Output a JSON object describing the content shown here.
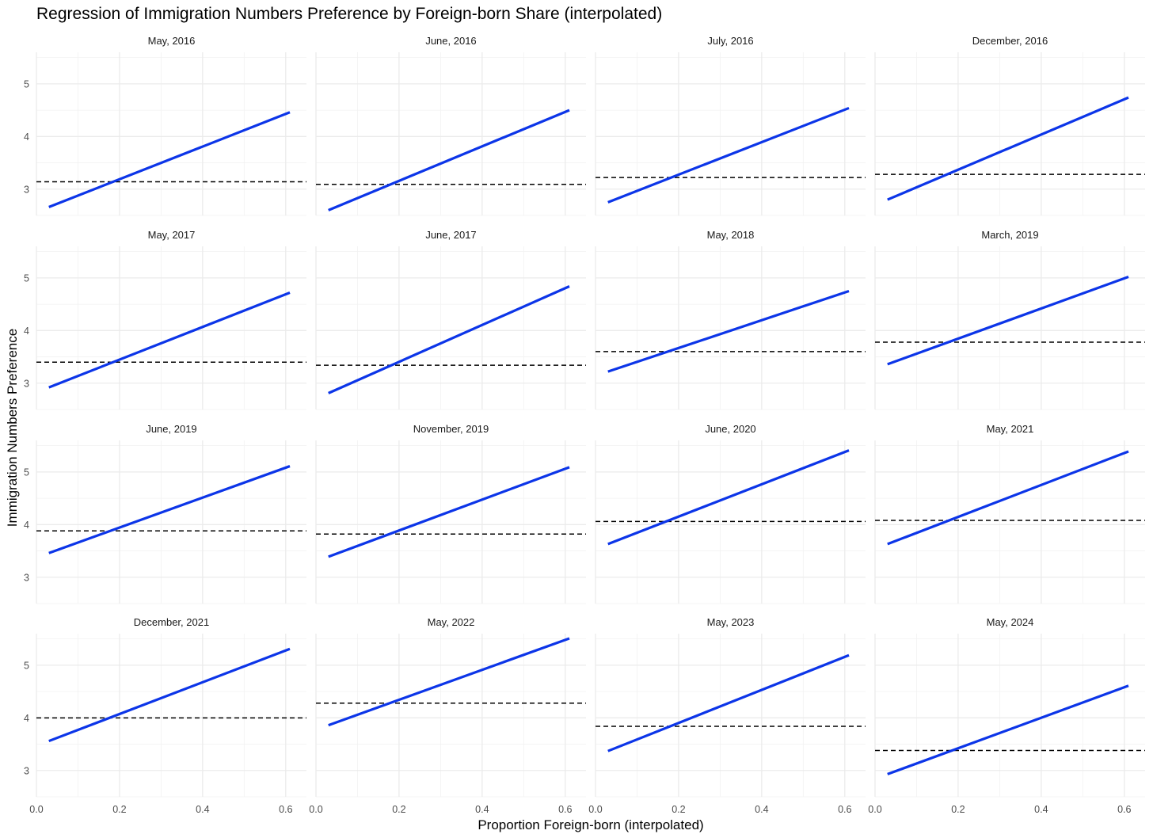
{
  "chart_data": {
    "type": "line",
    "title": "Regression of Immigration Numbers Preference by Foreign-born Share (interpolated)",
    "xlabel": "Proportion Foreign-born (interpolated)",
    "ylabel": "Immigration Numbers Preference",
    "xlim": [
      0,
      0.65
    ],
    "ylim": [
      2.5,
      5.6
    ],
    "x_ticks": [
      0.0,
      0.2,
      0.4,
      0.6
    ],
    "x_tick_labels": [
      "0.0",
      "0.2",
      "0.4",
      "0.6"
    ],
    "y_ticks": [
      3,
      4,
      5
    ],
    "y_tick_labels": [
      "3",
      "4",
      "5"
    ],
    "grid": true,
    "legend": "none",
    "colors": {
      "regression": "#0c35e8",
      "mean": "#000000"
    },
    "panels": [
      {
        "label": "May, 2016",
        "x": [
          0.03,
          0.61
        ],
        "fit": [
          2.66,
          4.46
        ],
        "mean": 3.14
      },
      {
        "label": "June, 2016",
        "x": [
          0.03,
          0.61
        ],
        "fit": [
          2.6,
          4.5
        ],
        "mean": 3.09
      },
      {
        "label": "July, 2016",
        "x": [
          0.03,
          0.61
        ],
        "fit": [
          2.75,
          4.54
        ],
        "mean": 3.22
      },
      {
        "label": "December, 2016",
        "x": [
          0.03,
          0.61
        ],
        "fit": [
          2.8,
          4.74
        ],
        "mean": 3.28
      },
      {
        "label": "May, 2017",
        "x": [
          0.03,
          0.61
        ],
        "fit": [
          2.92,
          4.72
        ],
        "mean": 3.4
      },
      {
        "label": "June, 2017",
        "x": [
          0.03,
          0.61
        ],
        "fit": [
          2.81,
          4.84
        ],
        "mean": 3.34
      },
      {
        "label": "May, 2018",
        "x": [
          0.03,
          0.61
        ],
        "fit": [
          3.22,
          4.75
        ],
        "mean": 3.6
      },
      {
        "label": "March, 2019",
        "x": [
          0.03,
          0.61
        ],
        "fit": [
          3.36,
          5.02
        ],
        "mean": 3.78
      },
      {
        "label": "June, 2019",
        "x": [
          0.03,
          0.61
        ],
        "fit": [
          3.46,
          5.11
        ],
        "mean": 3.88
      },
      {
        "label": "November, 2019",
        "x": [
          0.03,
          0.61
        ],
        "fit": [
          3.39,
          5.09
        ],
        "mean": 3.82
      },
      {
        "label": "June, 2020",
        "x": [
          0.03,
          0.61
        ],
        "fit": [
          3.63,
          5.41
        ],
        "mean": 4.06
      },
      {
        "label": "May, 2021",
        "x": [
          0.03,
          0.61
        ],
        "fit": [
          3.63,
          5.39
        ],
        "mean": 4.08
      },
      {
        "label": "December, 2021",
        "x": [
          0.03,
          0.61
        ],
        "fit": [
          3.56,
          5.31
        ],
        "mean": 4.0
      },
      {
        "label": "May, 2022",
        "x": [
          0.03,
          0.61
        ],
        "fit": [
          3.86,
          5.51
        ],
        "mean": 4.28
      },
      {
        "label": "May, 2023",
        "x": [
          0.03,
          0.61
        ],
        "fit": [
          3.37,
          5.19
        ],
        "mean": 3.84
      },
      {
        "label": "May, 2024",
        "x": [
          0.03,
          0.61
        ],
        "fit": [
          2.93,
          4.61
        ],
        "mean": 3.38
      }
    ]
  }
}
